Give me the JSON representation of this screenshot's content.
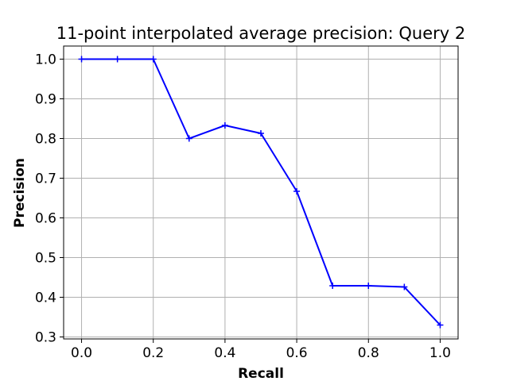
{
  "chart_data": {
    "type": "line",
    "title": "11-point interpolated average precision: Query 2",
    "xlabel": "Recall",
    "ylabel": "Precision",
    "xlim": [
      -0.05,
      1.05
    ],
    "ylim": [
      0.295,
      1.033
    ],
    "grid": true,
    "legend": "none",
    "x_ticks": [
      "0.0",
      "0.2",
      "0.4",
      "0.6",
      "0.8",
      "1.0"
    ],
    "y_ticks": [
      "0.3",
      "0.4",
      "0.5",
      "0.6",
      "0.7",
      "0.8",
      "0.9",
      "1.0"
    ],
    "series": [
      {
        "color": "#0000ff",
        "marker": "plus",
        "x": [
          0.0,
          0.1,
          0.2,
          0.3,
          0.4,
          0.5,
          0.6,
          0.7,
          0.8,
          0.9,
          1.0
        ],
        "y": [
          1.0,
          1.0,
          1.0,
          0.8,
          0.833,
          0.813,
          0.667,
          0.429,
          0.429,
          0.426,
          0.33
        ]
      }
    ]
  }
}
